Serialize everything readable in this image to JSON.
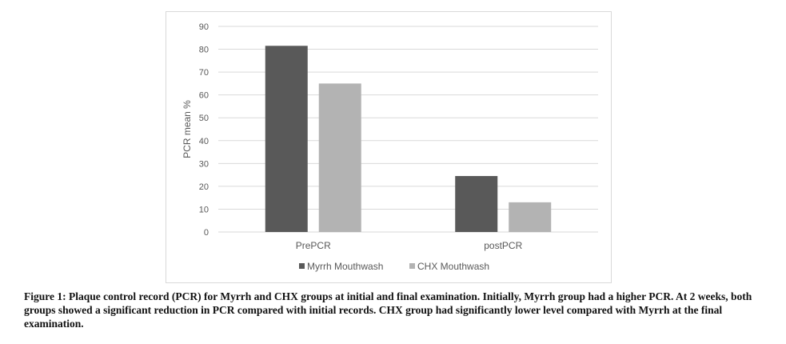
{
  "chart_data": {
    "type": "bar",
    "categories": [
      "PrePCR",
      "postPCR"
    ],
    "series": [
      {
        "name": "Myrrh Mouthwash",
        "values": [
          81.5,
          24.5
        ],
        "color": "#595959"
      },
      {
        "name": "CHX Mouthwash",
        "values": [
          65,
          13
        ],
        "color": "#b3b3b3"
      }
    ],
    "title": "",
    "xlabel": "",
    "ylabel": "PCR mean %",
    "ylim": [
      0,
      90
    ],
    "yticks": [
      "0",
      "10",
      "20",
      "30",
      "40",
      "50",
      "60",
      "70",
      "80",
      "90"
    ],
    "grid": true,
    "legend_position": "bottom",
    "gridline_color": "#d9d9d9"
  },
  "caption": "Figure 1: Plaque control record (PCR) for Myrrh and CHX groups at initial and final examination. Initially, Myrrh group had a higher PCR. At 2 weeks, both groups showed a significant reduction in PCR compared with initial records. CHX group had significantly lower level compared with Myrrh at the final examination."
}
